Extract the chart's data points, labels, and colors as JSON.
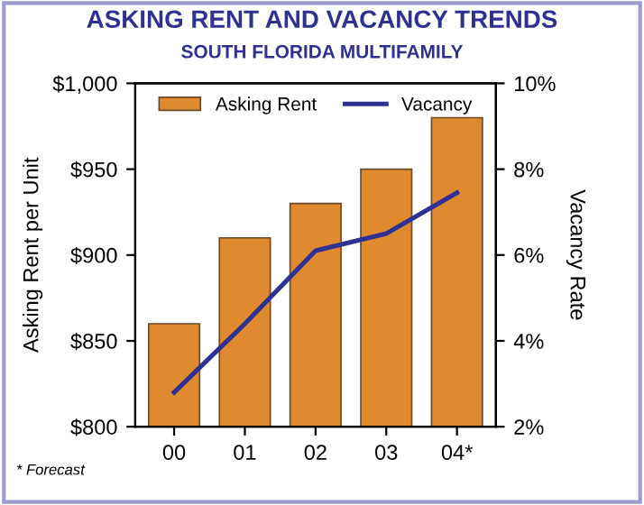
{
  "chart_data": {
    "type": "bar",
    "title": "ASKING RENT AND VACANCY TRENDS",
    "subtitle": "SOUTH FLORIDA MULTIFAMILY",
    "categories": [
      "00",
      "01",
      "02",
      "03",
      "04*"
    ],
    "series": [
      {
        "name": "Asking Rent",
        "color": "#e08a30",
        "values": [
          860,
          910,
          930,
          950,
          980
        ]
      },
      {
        "name": "Vacancy",
        "type": "line",
        "axis": "y2",
        "color": "#2e3192",
        "values": [
          2.8,
          4.4,
          6.1,
          6.5,
          7.45
        ]
      }
    ],
    "ylabel": "Asking Rent per Unit",
    "y2label": "Vacancy Rate",
    "ylim": [
      800,
      1000
    ],
    "yticks": [
      {
        "value": 800,
        "label": "$800"
      },
      {
        "value": 850,
        "label": "$850"
      },
      {
        "value": 900,
        "label": "$900"
      },
      {
        "value": 950,
        "label": "$950"
      },
      {
        "value": 1000,
        "label": "$1,000"
      }
    ],
    "y2lim": [
      2,
      10
    ],
    "y2ticks": [
      {
        "value": 2,
        "label": "2%"
      },
      {
        "value": 4,
        "label": "4%"
      },
      {
        "value": 6,
        "label": "6%"
      },
      {
        "value": 8,
        "label": "8%"
      },
      {
        "value": 10,
        "label": "10%"
      }
    ],
    "legend": "top",
    "grid": false,
    "marker": "none",
    "line_style": "solid",
    "annotations": [
      "* Forecast"
    ]
  }
}
